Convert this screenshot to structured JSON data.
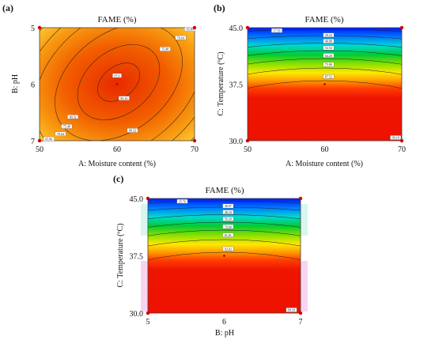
{
  "colors": {
    "low": "#0022ff",
    "mid": "#00cc44",
    "high_yellow": "#ffee00",
    "high": "#ee1100",
    "marker": "#cc0000"
  },
  "chart_data": [
    {
      "panel": "(a)",
      "type": "contour",
      "title": "FAME (%)",
      "xlabel": "A: Moisture content (%)",
      "ylabel": "B: pH",
      "xlim": [
        50,
        70
      ],
      "ylim": [
        5,
        7
      ],
      "xticks": [
        "50",
        "60",
        "70"
      ],
      "yticks": [
        "5",
        "6",
        "7"
      ],
      "center_point": {
        "x": 60,
        "y": 6
      },
      "contour_labels": [
        {
          "text": "87.6",
          "x": 60.0,
          "y": 5.85
        },
        {
          "text": "85.16",
          "x": 60.9,
          "y": 6.25
        },
        {
          "text": "80.32",
          "x": 62.0,
          "y": 6.82
        },
        {
          "text": "75.48",
          "x": 66.2,
          "y": 5.38
        },
        {
          "text": "70.64",
          "x": 68.2,
          "y": 5.18
        },
        {
          "text": "65.80",
          "x": 69.4,
          "y": 5.03
        },
        {
          "text": "80.32",
          "x": 54.3,
          "y": 6.58
        },
        {
          "text": "75.48",
          "x": 53.5,
          "y": 6.75
        },
        {
          "text": "70.64",
          "x": 52.7,
          "y": 6.88
        },
        {
          "text": "65.80",
          "x": 51.2,
          "y": 6.97
        }
      ]
    },
    {
      "panel": "(b)",
      "type": "contour",
      "title": "FAME (%)",
      "xlabel": "A: Moisture content (%)",
      "ylabel": "C: Temperature (ºC)",
      "xlim": [
        50,
        70
      ],
      "ylim": [
        30.0,
        45.0
      ],
      "xticks": [
        "50",
        "60",
        "70"
      ],
      "yticks": [
        "30.0",
        "37.5",
        "45.0"
      ],
      "center_point": {
        "x": 60,
        "y": 37.5
      },
      "contour_labels": [
        {
          "text": "17.56",
          "x": 53.8,
          "y": 44.6
        },
        {
          "text": "29.22",
          "x": 60.5,
          "y": 44.0
        },
        {
          "text": "40.88",
          "x": 60.5,
          "y": 43.2
        },
        {
          "text": "52.54",
          "x": 60.5,
          "y": 42.3
        },
        {
          "text": "64.20",
          "x": 60.5,
          "y": 41.3
        },
        {
          "text": "75.86",
          "x": 60.5,
          "y": 40.1
        },
        {
          "text": "87.52",
          "x": 60.5,
          "y": 38.5
        },
        {
          "text": "99.18",
          "x": 69.2,
          "y": 30.4
        }
      ]
    },
    {
      "panel": "(c)",
      "type": "contour",
      "title": "FAME (%)",
      "xlabel": "B: pH",
      "ylabel": "C: Temperature (ºC)",
      "xlim": [
        5,
        7
      ],
      "ylim": [
        30.0,
        45.0
      ],
      "xticks": [
        "5",
        "6",
        "7"
      ],
      "yticks": [
        "30.0",
        "37.5",
        "45.0"
      ],
      "center_point": {
        "x": 6,
        "y": 37.5
      },
      "contour_labels": [
        {
          "text": "25.76",
          "x": 5.45,
          "y": 44.6
        },
        {
          "text": "36.97",
          "x": 6.05,
          "y": 44.0
        },
        {
          "text": "48.18",
          "x": 6.05,
          "y": 43.2
        },
        {
          "text": "59.39",
          "x": 6.05,
          "y": 42.3
        },
        {
          "text": "70.60",
          "x": 6.05,
          "y": 41.3
        },
        {
          "text": "81.81",
          "x": 6.05,
          "y": 40.2
        },
        {
          "text": "93.02",
          "x": 6.05,
          "y": 38.4
        },
        {
          "text": "99.18",
          "x": 6.88,
          "y": 30.4
        }
      ]
    }
  ]
}
